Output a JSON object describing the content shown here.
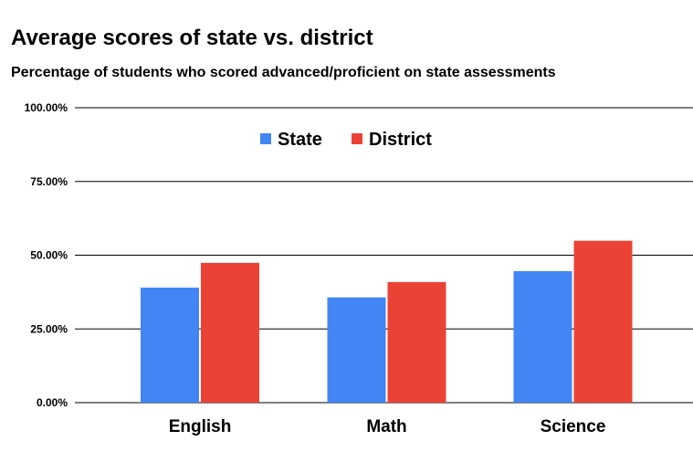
{
  "chart_data": {
    "type": "bar",
    "title": "Average scores of state vs. district",
    "subtitle": "Percentage of students who scored advanced/proficient on state assessments",
    "xlabel": "",
    "ylabel": "",
    "categories": [
      "English",
      "Math",
      "Science"
    ],
    "series": [
      {
        "name": "State",
        "color": "#4285f4",
        "values": [
          39.0,
          35.7,
          44.6
        ]
      },
      {
        "name": "District",
        "color": "#ea4335",
        "values": [
          47.4,
          40.9,
          54.9
        ]
      }
    ],
    "ylim": [
      0,
      100
    ],
    "yticks": [
      0,
      25,
      50,
      75,
      100
    ],
    "ytick_labels": [
      "0.00%",
      "25.00%",
      "50.00%",
      "75.00%",
      "100.00%"
    ],
    "grid": true,
    "legend_position": "top-center"
  }
}
